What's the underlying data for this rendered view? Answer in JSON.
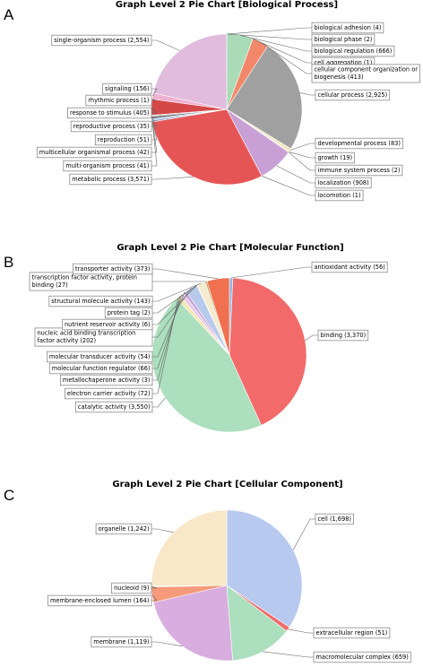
{
  "chart_data": [
    {
      "type": "pie",
      "panel_label": "A",
      "title": "Graph Level 2 Pie Chart [Biological Process]",
      "slices": [
        {
          "label": "biological adhesion (4)",
          "value": 4,
          "color": "#4f9a3a"
        },
        {
          "label": "biological phase (2)",
          "value": 2,
          "color": "#c9a23a"
        },
        {
          "label": "biological regulation (666)",
          "value": 666,
          "color": "#a8dbb6"
        },
        {
          "label": "cell aggregation (1)",
          "value": 1,
          "color": "#ff8a66"
        },
        {
          "label": "cellular component organization or biogenesis (413)",
          "value": 413,
          "color": "#f2876a"
        },
        {
          "label": "cellular process (2,925)",
          "value": 2925,
          "color": "#a0a0a0"
        },
        {
          "label": "developmental process (83)",
          "value": 83,
          "color": "#efe8bf"
        },
        {
          "label": "growth (19)",
          "value": 19,
          "color": "#d7b15a"
        },
        {
          "label": "immune system process (2)",
          "value": 2,
          "color": "#6aa7d9"
        },
        {
          "label": "localization (908)",
          "value": 908,
          "color": "#c9a0d6"
        },
        {
          "label": "locomotion (1)",
          "value": 1,
          "color": "#e8d48a"
        },
        {
          "label": "metabolic process (3,571)",
          "value": 3571,
          "color": "#e65555"
        },
        {
          "label": "multi-organism process (41)",
          "value": 41,
          "color": "#8d8dc9"
        },
        {
          "label": "multicellular organismal process (42)",
          "value": 42,
          "color": "#9fc9e8"
        },
        {
          "label": "reproduction (51)",
          "value": 51,
          "color": "#4d4d4d"
        },
        {
          "label": "reproductive process (35)",
          "value": 35,
          "color": "#b8b8b8"
        },
        {
          "label": "response to stimulus (405)",
          "value": 405,
          "color": "#d54848"
        },
        {
          "label": "rhythmic process (1)",
          "value": 1,
          "color": "#e8c0a0"
        },
        {
          "label": "signaling (156)",
          "value": 156,
          "color": "#f0b0d0"
        },
        {
          "label": "single-organism process (2,554)",
          "value": 2554,
          "color": "#e1bcdc"
        }
      ]
    },
    {
      "type": "pie",
      "panel_label": "B",
      "title": "Graph Level 2 Pie Chart [Molecular Function]",
      "slices": [
        {
          "label": "antioxidant activity (56)",
          "value": 56,
          "color": "#8fb4e3"
        },
        {
          "label": "binding (3,370)",
          "value": 3370,
          "color": "#f26a6a"
        },
        {
          "label": "catalytic activity (3,550)",
          "value": 3550,
          "color": "#abdfbd"
        },
        {
          "label": "electron carrier activity (72)",
          "value": 72,
          "color": "#f5e6b0"
        },
        {
          "label": "metallochaperone activity (3)",
          "value": 3,
          "color": "#c46a5a"
        },
        {
          "label": "molecular function regulator (66)",
          "value": 66,
          "color": "#e6c8e6"
        },
        {
          "label": "molecular transducer activity (54)",
          "value": 54,
          "color": "#c8a0d8"
        },
        {
          "label": "nucleic acid binding transcription factor activity (202)",
          "value": 202,
          "color": "#b7caeb"
        },
        {
          "label": "nutrient reservoir activity (6)",
          "value": 6,
          "color": "#e8a0a0"
        },
        {
          "label": "protein tag (2)",
          "value": 2,
          "color": "#e0d090"
        },
        {
          "label": "structural molecule activity (143)",
          "value": 143,
          "color": "#f3ead0"
        },
        {
          "label": "transcription factor activity, protein binding (27)",
          "value": 27,
          "color": "#c09040"
        },
        {
          "label": "transporter activity (373)",
          "value": 373,
          "color": "#f07050"
        }
      ]
    },
    {
      "type": "pie",
      "panel_label": "C",
      "title": "Graph Level 2 Pie Chart [Cellular Component]",
      "slices": [
        {
          "label": "cell (1,698)",
          "value": 1698,
          "color": "#b7c9ef"
        },
        {
          "label": "extracellular region (51)",
          "value": 51,
          "color": "#ef6a6a"
        },
        {
          "label": "macromolecular complex (659)",
          "value": 659,
          "color": "#abdfbd"
        },
        {
          "label": "membrane (1,119)",
          "value": 1119,
          "color": "#d8aee0"
        },
        {
          "label": "membrane-enclosed lumen (164)",
          "value": 164,
          "color": "#f59a7a"
        },
        {
          "label": "nucleoid (9)",
          "value": 9,
          "color": "#d8c0a0"
        },
        {
          "label": "organelle (1,242)",
          "value": 1242,
          "color": "#f8e8c8"
        }
      ]
    }
  ]
}
